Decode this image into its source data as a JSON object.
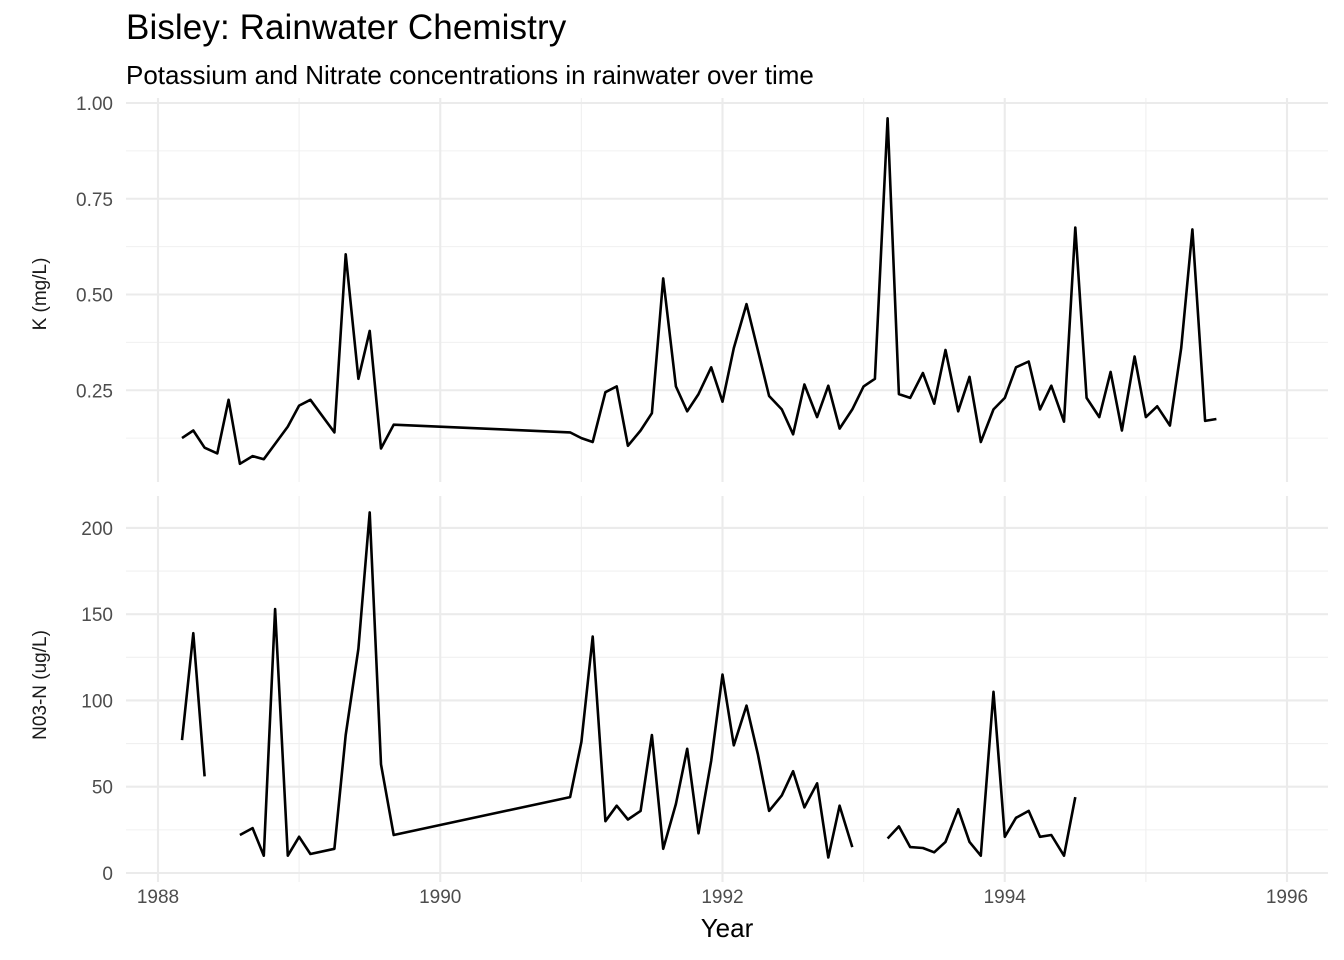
{
  "chart_data": {
    "type": "line",
    "title": "Bisley: Rainwater Chemistry",
    "subtitle": "Potassium and Nitrate concentrations in rainwater over time",
    "xlabel": "Year",
    "xlim": [
      1988,
      1996.3
    ],
    "x_ticks": [
      1988,
      1990,
      1992,
      1994,
      1996
    ],
    "x_tick_labels": [
      "1988",
      "1990",
      "1992",
      "1994",
      "1996"
    ],
    "grid": true,
    "line_color": "#000000",
    "panels": [
      {
        "ylabel": "K (mg/L)",
        "ylim": [
          0.0,
          1.0
        ],
        "y_ticks": [
          0.25,
          0.5,
          0.75,
          1.0
        ],
        "y_tick_labels": [
          "0.25",
          "0.50",
          "0.75",
          "1.00"
        ],
        "series": [
          {
            "x": [
              1988.17,
              1988.25,
              1988.33,
              1988.42,
              1988.5,
              1988.58,
              1988.67,
              1988.75,
              1988.83,
              1988.92,
              1989.0,
              1989.08,
              1989.25,
              1989.33,
              1989.42,
              1989.5,
              1989.58,
              1989.67,
              1990.92,
              1991.0,
              1991.08,
              1991.17,
              1991.25,
              1991.33,
              1991.42,
              1991.5,
              1991.58,
              1991.67,
              1991.75,
              1991.83,
              1991.92,
              1992.0,
              1992.08,
              1992.17,
              1992.25,
              1992.33,
              1992.42,
              1992.5,
              1992.58,
              1992.67,
              1992.75,
              1992.83,
              1992.92,
              1993.0,
              1993.08,
              1993.17,
              1993.25,
              1993.33,
              1993.42,
              1993.5,
              1993.58,
              1993.67,
              1993.75,
              1993.83,
              1993.92,
              1994.0,
              1994.08,
              1994.17,
              1994.25,
              1994.33,
              1994.42,
              1994.5,
              1994.58,
              1994.67,
              1994.75,
              1994.83,
              1994.92,
              1995.0,
              1995.08,
              1995.17,
              1995.25,
              1995.33,
              1995.42,
              1995.5
            ],
            "y": [
              0.125,
              0.145,
              0.1,
              0.085,
              0.225,
              0.058,
              0.078,
              0.07,
              0.11,
              0.155,
              0.21,
              0.225,
              0.14,
              0.605,
              0.28,
              0.405,
              0.098,
              0.16,
              0.14,
              0.125,
              0.115,
              0.245,
              0.26,
              0.105,
              0.145,
              0.19,
              0.542,
              0.26,
              0.195,
              0.24,
              0.31,
              0.22,
              0.36,
              0.475,
              0.355,
              0.235,
              0.2,
              0.135,
              0.265,
              0.18,
              0.262,
              0.15,
              0.2,
              0.26,
              0.28,
              0.96,
              0.24,
              0.23,
              0.295,
              0.215,
              0.355,
              0.195,
              0.285,
              0.115,
              0.2,
              0.23,
              0.31,
              0.325,
              0.2,
              0.262,
              0.168,
              0.675,
              0.23,
              0.18,
              0.298,
              0.145,
              0.338,
              0.18,
              0.208,
              0.158,
              0.36,
              0.67,
              0.17,
              0.175
            ]
          }
        ]
      },
      {
        "ylabel": "N03-N (ug/L)",
        "ylim": [
          0,
          200
        ],
        "y_ticks": [
          0,
          50,
          100,
          150,
          200
        ],
        "y_tick_labels": [
          "0",
          "50",
          "100",
          "150",
          "200"
        ],
        "segments": [
          {
            "x": [
              1988.17,
              1988.25,
              1988.33
            ],
            "y": [
              77,
              139,
              56
            ]
          },
          {
            "x": [
              1988.58,
              1988.67,
              1988.75,
              1988.83,
              1988.92,
              1989.0,
              1989.08,
              1989.25,
              1989.33,
              1989.42,
              1989.5,
              1989.58,
              1989.67,
              1990.92,
              1991.0,
              1991.08,
              1991.17,
              1991.25,
              1991.33,
              1991.42,
              1991.5,
              1991.58,
              1991.67,
              1991.75,
              1991.83,
              1991.92,
              1992.0,
              1992.08,
              1992.17,
              1992.25,
              1992.33,
              1992.42,
              1992.5,
              1992.58,
              1992.67,
              1992.75,
              1992.83,
              1992.92
            ],
            "y": [
              22,
              26,
              10,
              153,
              10,
              21,
              11,
              14,
              80,
              130,
              209,
              63,
              22,
              44,
              76,
              137,
              30,
              39,
              31,
              36,
              80,
              14,
              40,
              72,
              23,
              65,
              115,
              74,
              97,
              69,
              36,
              45,
              59,
              38,
              52,
              9,
              39,
              15
            ]
          },
          {
            "x": [
              1993.17,
              1993.25,
              1993.33,
              1993.42,
              1993.5,
              1993.58,
              1993.67,
              1993.75,
              1993.83,
              1993.92,
              1994.0,
              1994.08,
              1994.17,
              1994.25,
              1994.33,
              1994.42,
              1994.5
            ],
            "y": [
              20,
              27,
              15,
              14.5,
              12,
              18,
              37,
              18,
              10,
              105,
              21,
              32,
              36,
              21,
              22,
              10,
              44
            ]
          }
        ]
      }
    ]
  }
}
